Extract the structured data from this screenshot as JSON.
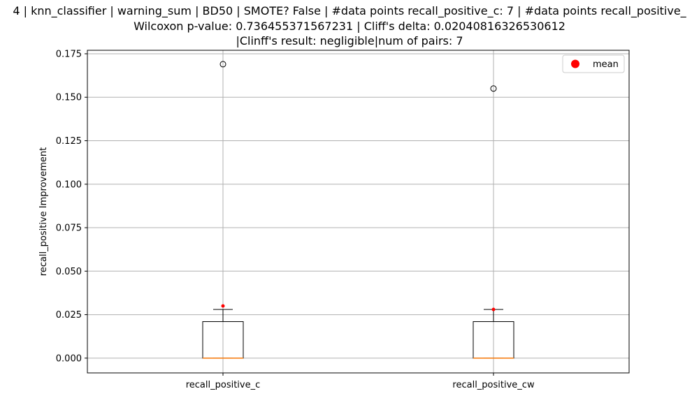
{
  "chart_data": {
    "type": "box",
    "title_lines": [
      "4 | knn_classifier | warning_sum | BD50 | SMOTE? False | #data points recall_positive_c: 7 | #data points recall_positive_",
      "Wilcoxon p-value: 0.736455371567231 | Cliff's delta: 0.02040816326530612",
      "|Clinff's result: negligible|num of pairs: 7"
    ],
    "ylabel": "recall_positive Improvement",
    "ylim": [
      -0.0085,
      0.177
    ],
    "yticks": [
      "0.000",
      "0.025",
      "0.050",
      "0.075",
      "0.100",
      "0.125",
      "0.150",
      "0.175"
    ],
    "grid": true,
    "legend": {
      "position": "top-right",
      "entries": [
        {
          "label": "mean",
          "color": "#ff0000",
          "marker": "circle"
        }
      ]
    },
    "categories": [
      "recall_positive_c",
      "recall_positive_cw"
    ],
    "boxes": [
      {
        "name": "recall_positive_c",
        "min": 0.0,
        "q1": 0.0,
        "median": 0.0,
        "q3": 0.021,
        "whisker_high": 0.028,
        "outliers": [
          0.169
        ],
        "mean": 0.03
      },
      {
        "name": "recall_positive_cw",
        "min": 0.0,
        "q1": 0.0,
        "median": 0.0,
        "q3": 0.021,
        "whisker_high": 0.028,
        "outliers": [
          0.155
        ],
        "mean": 0.028
      }
    ],
    "colors": {
      "box": "#000000",
      "median": "#ff7f0e",
      "mean": "#ff0000",
      "grid": "#b0b0b0"
    }
  }
}
